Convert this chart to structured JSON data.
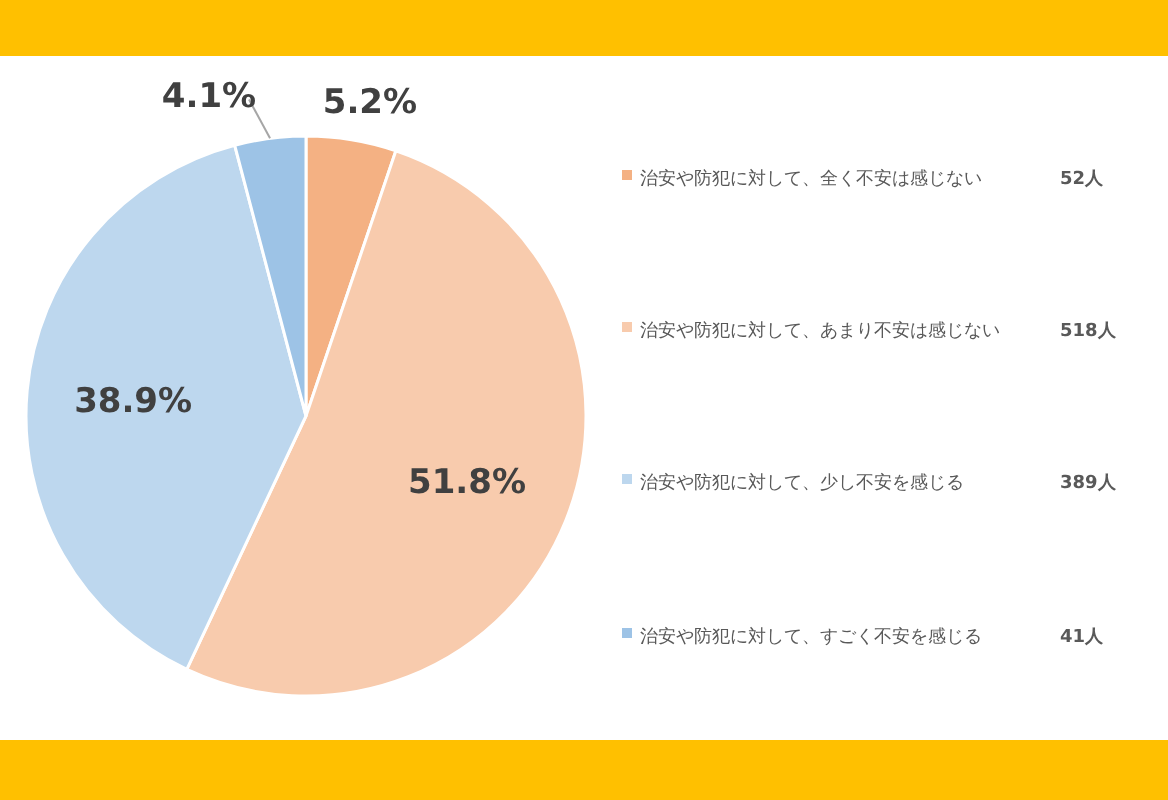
{
  "chart_data": {
    "type": "pie",
    "categories": [
      "治安や防犯に対して、全く不安は感じない",
      "治安や防犯に対して、あまり不安は感じない",
      "治安や防犯に対して、少し不安を感じる",
      "治安や防犯に対して、すごく不安を感じる"
    ],
    "values": [
      5.2,
      51.8,
      38.9,
      4.1
    ],
    "value_labels": [
      "5.2%",
      "51.8%",
      "38.9%",
      "4.1%"
    ],
    "colors": [
      "#f4b183",
      "#f8cbad",
      "#bdd7ee",
      "#9dc3e6"
    ],
    "annotations": [
      "52人",
      "518人",
      "389人",
      "41人"
    ],
    "legend": "right"
  }
}
